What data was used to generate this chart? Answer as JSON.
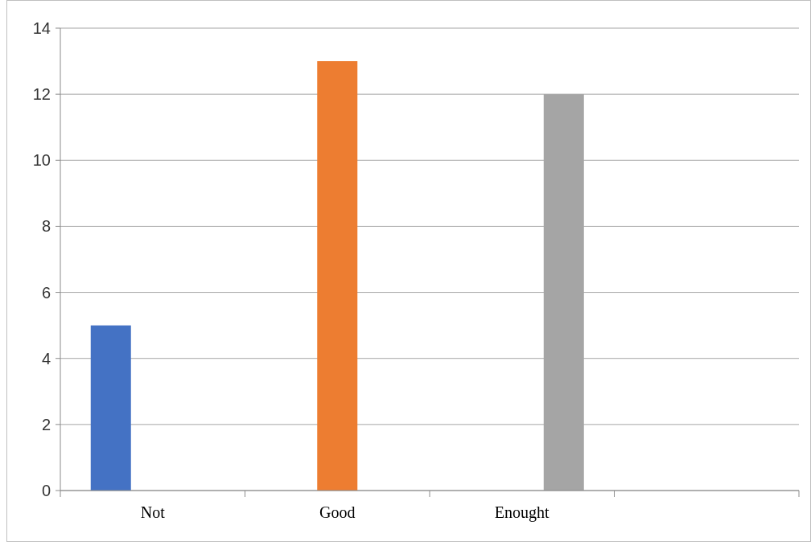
{
  "chart_data": {
    "type": "bar",
    "categories": [
      "Not",
      "Good",
      "Enought",
      null
    ],
    "series": [
      {
        "color": "#4472c4",
        "values": [
          5,
          null,
          null,
          null
        ]
      },
      {
        "color": "#ed7d31",
        "values": [
          null,
          13,
          null,
          null
        ]
      },
      {
        "color": "#a5a5a5",
        "values": [
          null,
          null,
          12,
          null
        ]
      }
    ],
    "ylim": [
      0,
      14
    ],
    "yticks": [
      0,
      2,
      4,
      6,
      8,
      10,
      12,
      14
    ],
    "grid": "y"
  }
}
